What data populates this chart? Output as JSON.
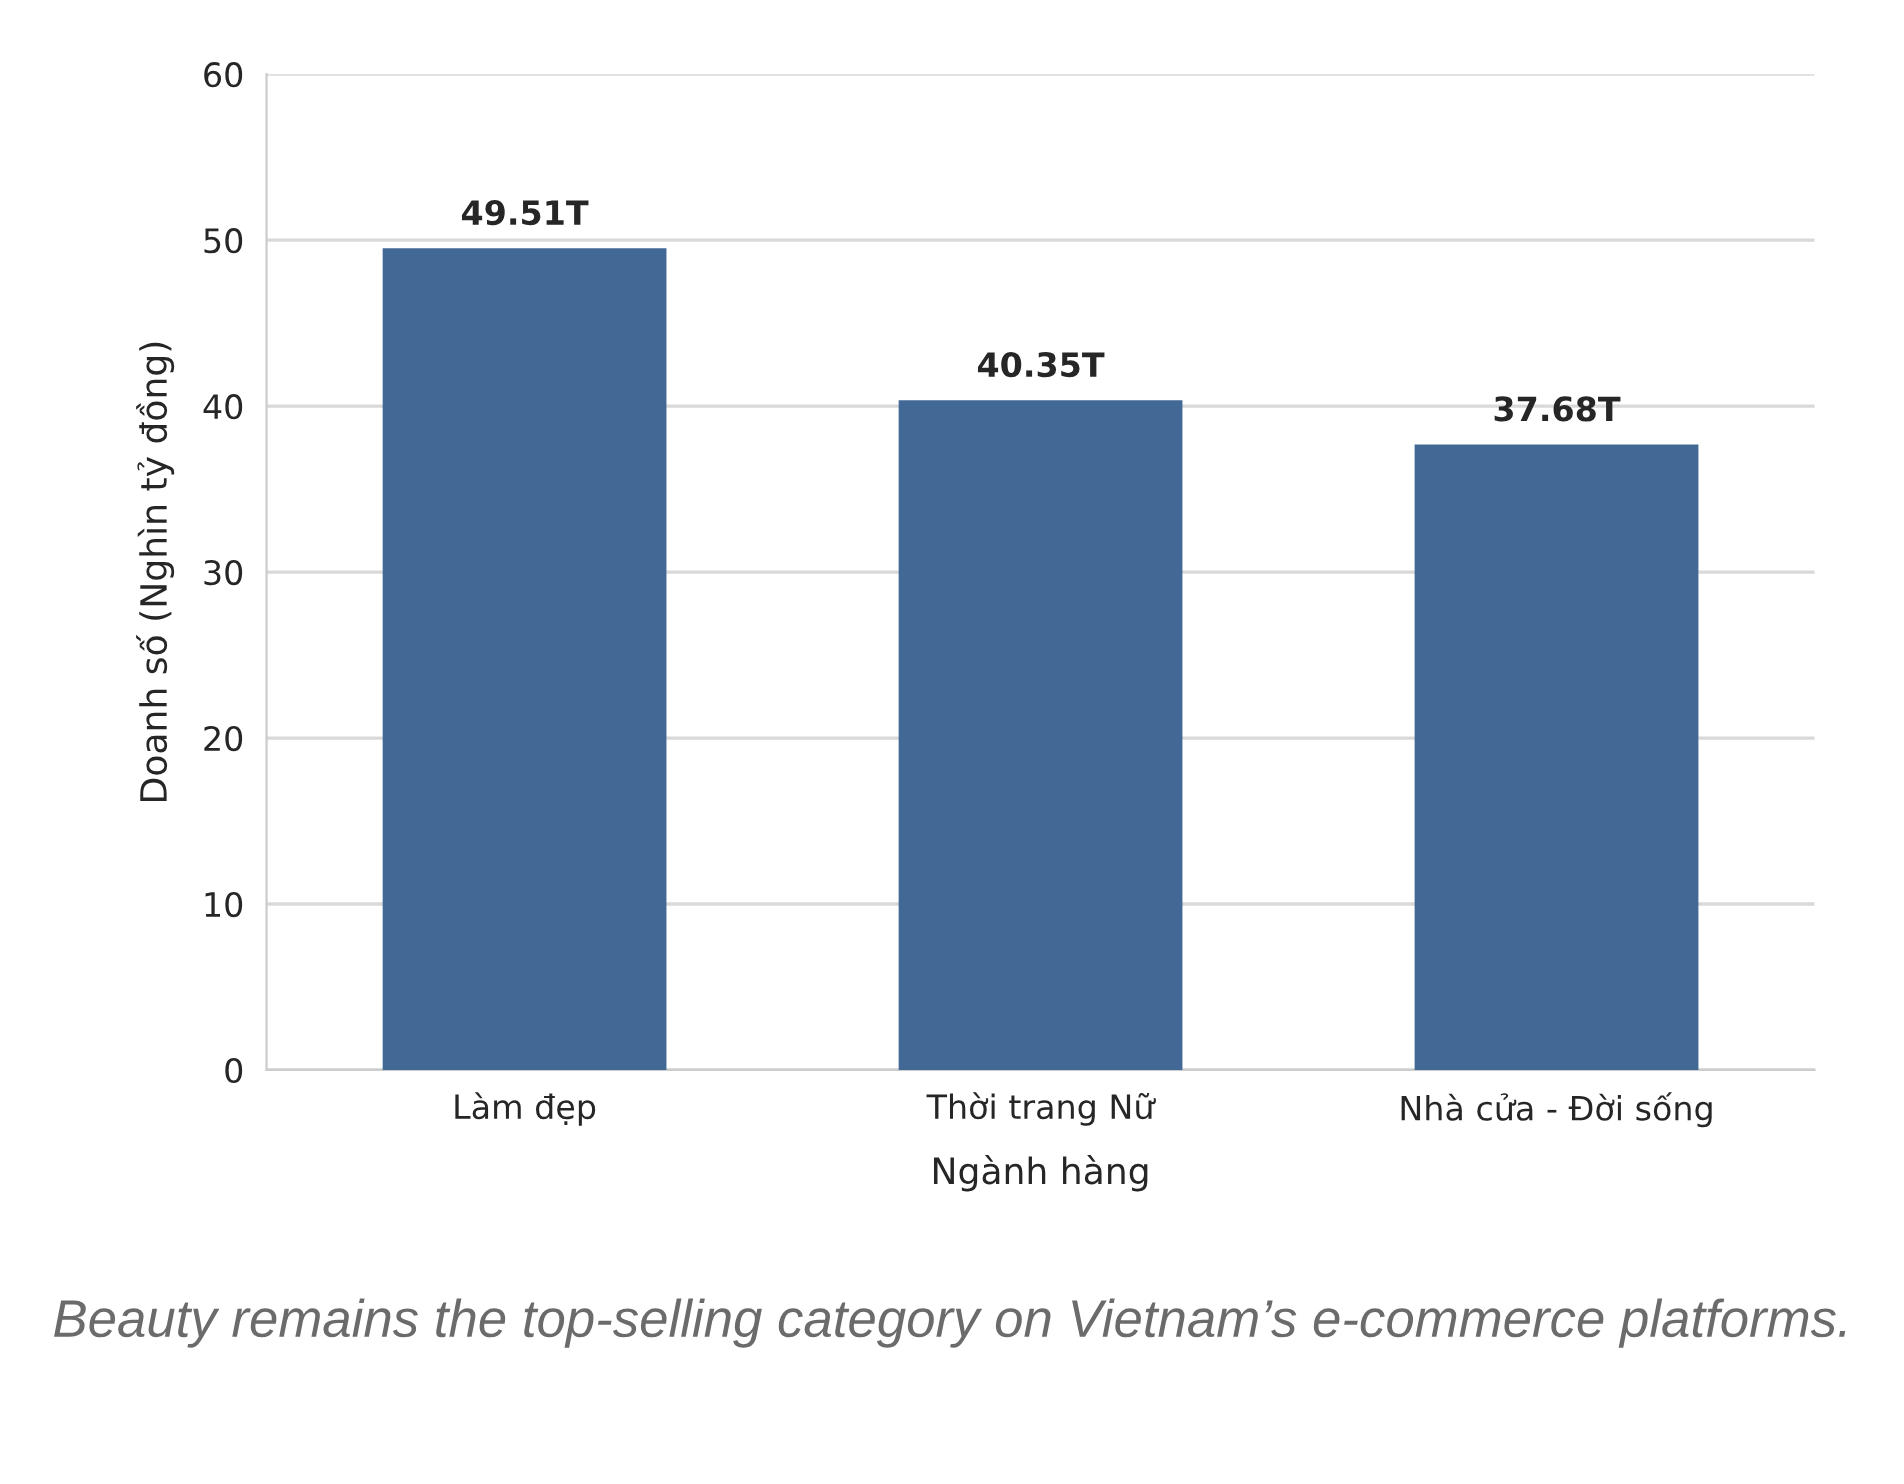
{
  "chart_data": {
    "type": "bar",
    "xlabel": "Ngành hàng",
    "ylabel": "Doanh số (Nghìn tỷ đồng)",
    "categories": [
      "Làm đẹp",
      "Thời trang Nữ",
      "Nhà cửa - Đời sống"
    ],
    "values": [
      49.51,
      40.35,
      37.68
    ],
    "value_labels": [
      "49.51T",
      "40.35T",
      "37.68T"
    ],
    "color": "#426896",
    "ylim": [
      0,
      60
    ],
    "yticks": [
      0,
      10,
      20,
      30,
      40,
      50,
      60
    ],
    "grid": "y",
    "annotations": [
      "Beauty remains the top-selling category on Vietnam’s e-commerce platforms."
    ]
  }
}
